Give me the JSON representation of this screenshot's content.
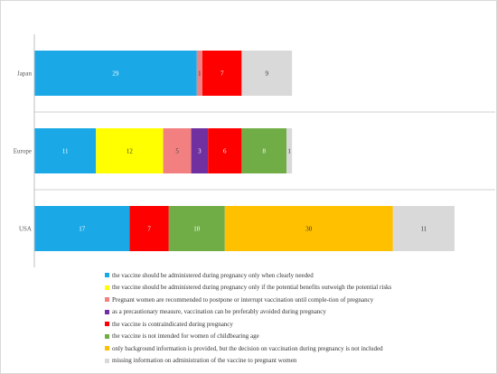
{
  "chart_data": {
    "type": "bar",
    "orientation": "horizontal",
    "stacked": true,
    "categories": [
      "Japan",
      "Europe",
      "USA"
    ],
    "series": [
      {
        "name": "the vaccine should be administered during pregnancy only when clearly needed",
        "color": "#1aa9e6",
        "values": [
          29,
          11,
          17
        ]
      },
      {
        "name": "the vaccine should be administered during pregnancy only if the potential benefits outweigh the potential risks",
        "color": "#ffff00",
        "values": [
          0,
          12,
          0
        ]
      },
      {
        "name": "Pregnant women are recommended to postpone or interrupt vaccination until comple-tion of pregnancy",
        "color": "#f28080",
        "values": [
          1,
          5,
          0
        ]
      },
      {
        "name": "as a precautionary measure, vaccination can be preferably avoided during pregnancy",
        "color": "#7030a0",
        "values": [
          0,
          3,
          0
        ]
      },
      {
        "name": "the vaccine is contraindicated during pregnancy",
        "color": "#ff0000",
        "values": [
          7,
          6,
          7
        ]
      },
      {
        "name": "the vaccine is not intended for women of childbearing age",
        "color": "#70ad47",
        "values": [
          0,
          8,
          10
        ]
      },
      {
        "name": "only background information is provided, but the decision on vaccination during pregnancy is not included",
        "color": "#ffc000",
        "values": [
          0,
          0,
          30
        ]
      },
      {
        "name": "missing information on administration of the vaccine to pregnant women",
        "color": "#d9d9d9",
        "values": [
          9,
          1,
          11
        ]
      }
    ],
    "legend_position": "bottom",
    "grid": false
  }
}
